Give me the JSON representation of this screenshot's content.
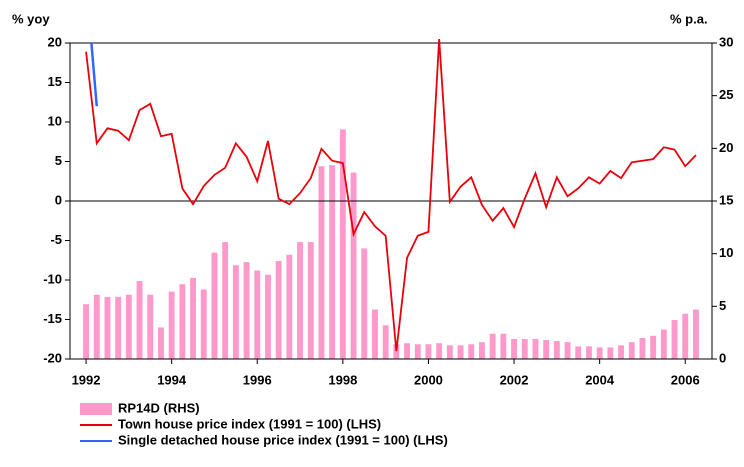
{
  "chart_data": {
    "type": "combo",
    "y_label": "% yoy",
    "y2_label": "% p.a.",
    "xlim": [
      1991.625,
      2006.625
    ],
    "xticks": [
      1992,
      1994,
      1996,
      1998,
      2000,
      2002,
      2004,
      2006
    ],
    "ylim": [
      -20,
      20
    ],
    "yticks": [
      -20,
      -15,
      -10,
      -5,
      0,
      5,
      10,
      15,
      20
    ],
    "y2lim": [
      0,
      30
    ],
    "y2ticks": [
      0,
      5,
      10,
      15,
      20,
      25,
      30
    ],
    "x": [
      1992,
      1992.25,
      1992.5,
      1992.75,
      1993,
      1993.25,
      1993.5,
      1993.75,
      1994,
      1994.25,
      1994.5,
      1994.75,
      1995,
      1995.25,
      1995.5,
      1995.75,
      1996,
      1996.25,
      1996.5,
      1996.75,
      1997,
      1997.25,
      1997.5,
      1997.75,
      1998,
      1998.25,
      1998.5,
      1998.75,
      1999,
      1999.25,
      1999.5,
      1999.75,
      2000,
      2000.25,
      2000.5,
      2000.75,
      2001,
      2001.25,
      2001.5,
      2001.75,
      2002,
      2002.25,
      2002.5,
      2002.75,
      2003,
      2003.25,
      2003.5,
      2003.75,
      2004,
      2004.25,
      2004.5,
      2004.75,
      2005,
      2005.25,
      2005.5,
      2005.75,
      2006,
      2006.25
    ],
    "series": [
      {
        "name": "RP14D (RHS)",
        "type": "bar",
        "axis": "y2",
        "color": "#ff99cc",
        "values": [
          5.2,
          6.1,
          5.9,
          5.9,
          6.1,
          7.4,
          6.1,
          3.0,
          6.4,
          7.1,
          7.7,
          6.6,
          10.1,
          11.1,
          8.9,
          9.2,
          8.4,
          8.0,
          9.3,
          9.9,
          11.1,
          11.1,
          18.3,
          18.4,
          21.8,
          17.7,
          10.5,
          4.7,
          3.2,
          1.4,
          1.5,
          1.4,
          1.4,
          1.5,
          1.3,
          1.3,
          1.4,
          1.6,
          2.4,
          2.4,
          1.9,
          1.9,
          1.9,
          1.8,
          1.7,
          1.6,
          1.2,
          1.2,
          1.1,
          1.1,
          1.3,
          1.6,
          2.0,
          2.2,
          2.8,
          3.7,
          4.3,
          4.7
        ]
      },
      {
        "name": "Town house price index (1991 = 100) (LHS)",
        "type": "line",
        "color": "#e8000b",
        "values": [
          18.9,
          7.3,
          9.2,
          8.9,
          7.7,
          11.5,
          12.3,
          8.2,
          8.5,
          1.6,
          -0.4,
          1.9,
          3.3,
          4.2,
          7.3,
          5.6,
          2.5,
          7.6,
          0.3,
          -0.4,
          1.0,
          2.9,
          6.6,
          5.1,
          4.8,
          -4.2,
          -1.4,
          -3.2,
          -4.4,
          -19.0,
          -7.2,
          -4.4,
          -3.9,
          20.5,
          -0.1,
          1.8,
          3.0,
          -0.5,
          -2.5,
          -0.9,
          -3.3,
          0.3,
          3.5,
          -0.8,
          3.0,
          0.6,
          1.6,
          3.0,
          2.2,
          3.8,
          2.9,
          4.9,
          5.1,
          5.3,
          6.8,
          6.5,
          4.4,
          5.8
        ]
      },
      {
        "name": "Single detached house price index (1991 = 100) (LHS)",
        "type": "line",
        "color": "#3366ff",
        "x": [
          1992.125,
          1992.25
        ],
        "values": [
          20,
          12
        ]
      }
    ]
  }
}
